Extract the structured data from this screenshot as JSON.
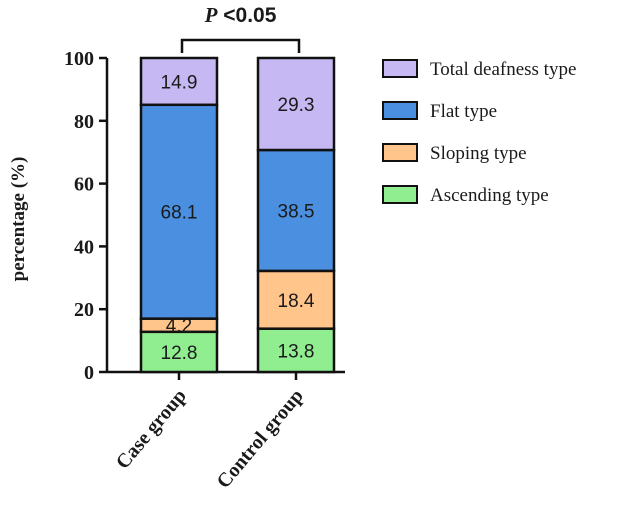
{
  "chart_data": {
    "type": "bar",
    "stacked": true,
    "categories": [
      "Case group",
      "Control group"
    ],
    "series": [
      {
        "name": "Ascending type",
        "values": [
          12.8,
          13.8
        ],
        "color": "#90ee90"
      },
      {
        "name": "Sloping type",
        "values": [
          4.2,
          18.4
        ],
        "color": "#ffc58a"
      },
      {
        "name": "Flat type",
        "values": [
          68.1,
          38.5
        ],
        "color": "#4a8fe0"
      },
      {
        "name": "Total deafness type",
        "values": [
          14.9,
          29.3
        ],
        "color": "#c6b8f2"
      }
    ],
    "legend_order": [
      "Total deafness type",
      "Flat type",
      "Sloping type",
      "Ascending type"
    ],
    "ylabel": "percentage (%)",
    "xlabel": "",
    "ylim": [
      0,
      100
    ],
    "yticks": [
      0,
      20,
      40,
      60,
      80,
      100
    ],
    "annotation": {
      "italic": "P",
      "rest": " <0.05"
    },
    "legend_position": "right",
    "grid": false
  }
}
